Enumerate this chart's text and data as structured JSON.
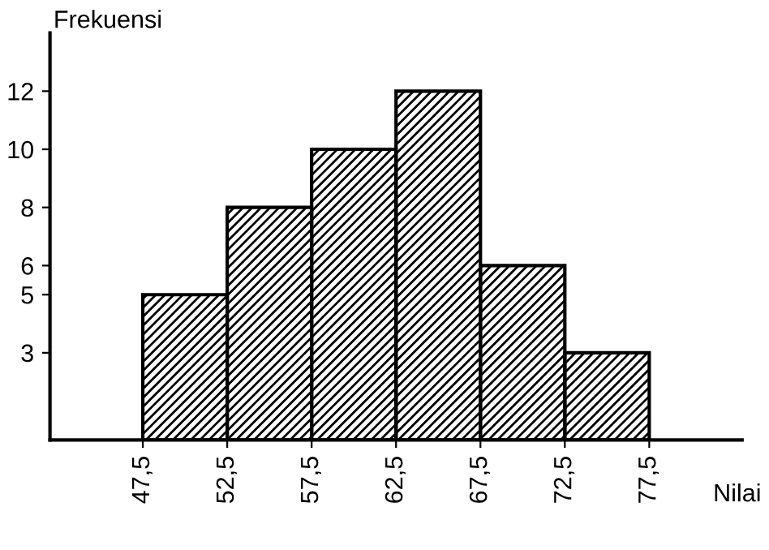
{
  "chart_data": {
    "type": "histogram",
    "xlabel": "Nilai",
    "ylabel": "Frekuensi",
    "bins": [
      47.5,
      52.5,
      57.5,
      62.5,
      67.5,
      72.5,
      77.5
    ],
    "values": [
      5,
      8,
      10,
      12,
      6,
      3
    ],
    "color": "#000000",
    "xlim": [
      42,
      83
    ],
    "ylim": [
      0,
      14
    ],
    "xticks": [
      {
        "value": 47.5,
        "label": "47,5"
      },
      {
        "value": 52.5,
        "label": "52,5"
      },
      {
        "value": 57.5,
        "label": "57,5"
      },
      {
        "value": 62.5,
        "label": "62,5"
      },
      {
        "value": 67.5,
        "label": "67,5"
      },
      {
        "value": 72.5,
        "label": "72,5"
      },
      {
        "value": 77.5,
        "label": "77,5"
      }
    ],
    "yticks": [
      3,
      5,
      6,
      8,
      10,
      12
    ],
    "grid": false,
    "legend": false
  }
}
